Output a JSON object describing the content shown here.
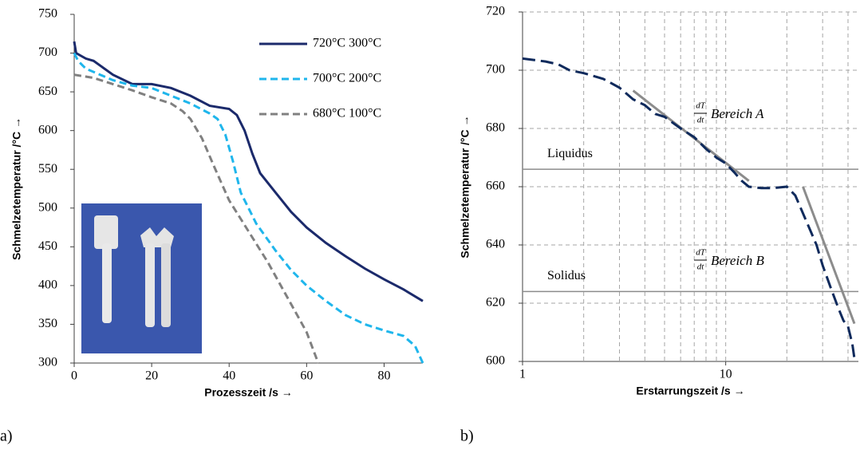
{
  "chart_data": [
    {
      "type": "line",
      "panel_label": "a)",
      "xlabel": "Prozesszeit /s →",
      "ylabel": "Schmelzetemperatur /°C →",
      "xlim": [
        0,
        90
      ],
      "xticks": [
        0,
        20,
        40,
        60,
        80
      ],
      "ylim": [
        300,
        750
      ],
      "yticks": [
        300,
        350,
        400,
        450,
        500,
        550,
        600,
        650,
        700,
        750
      ],
      "legend": "upper right",
      "series": [
        {
          "name": "720°C 300°C",
          "color": "#1b2a6b",
          "dash": "solid",
          "x": [
            0,
            0.5,
            3,
            5,
            10,
            15,
            20,
            25,
            30,
            35,
            40,
            42,
            44,
            46,
            48,
            52,
            56,
            60,
            65,
            70,
            75,
            80,
            85,
            90
          ],
          "values": [
            715,
            700,
            693,
            690,
            672,
            660,
            660,
            655,
            645,
            632,
            628,
            620,
            600,
            570,
            545,
            520,
            495,
            475,
            455,
            438,
            422,
            408,
            395,
            380
          ]
        },
        {
          "name": "700°C 200°C",
          "color": "#1fb6ec",
          "dash": "dashed",
          "x": [
            0,
            1,
            3,
            10,
            15,
            20,
            25,
            30,
            35,
            37,
            39,
            41,
            43,
            47,
            52,
            56,
            60,
            65,
            70,
            75,
            80,
            85,
            88,
            90
          ],
          "values": [
            700,
            690,
            680,
            665,
            658,
            655,
            645,
            635,
            622,
            615,
            595,
            560,
            520,
            480,
            445,
            420,
            400,
            380,
            362,
            350,
            342,
            335,
            322,
            300
          ]
        },
        {
          "name": "680°C 100°C",
          "color": "#808080",
          "dash": "dashed",
          "x": [
            0,
            5,
            10,
            15,
            20,
            25,
            28,
            30,
            33,
            36,
            40,
            45,
            50,
            55,
            60,
            63
          ],
          "values": [
            672,
            668,
            660,
            652,
            643,
            635,
            625,
            615,
            590,
            555,
            510,
            470,
            430,
            385,
            340,
            300
          ]
        }
      ]
    },
    {
      "type": "line",
      "panel_label": "b)",
      "xlabel": "Erstarrungszeit /s →",
      "ylabel": "Schmelzetemperatur /°C →",
      "xlog": true,
      "xlim": [
        1,
        45
      ],
      "xticks": [
        1,
        10
      ],
      "xgrid_minor": [
        2,
        3,
        4,
        5,
        6,
        7,
        8,
        9,
        20,
        30,
        40
      ],
      "ylim": [
        600,
        720
      ],
      "yticks": [
        600,
        620,
        640,
        660,
        680,
        700,
        720
      ],
      "grid": true,
      "color": "#0f2a5c",
      "dash": "longdash",
      "x": [
        1,
        1.3,
        1.5,
        1.7,
        2,
        2.5,
        3,
        3.5,
        4,
        4.5,
        5,
        6,
        7,
        8,
        9,
        10,
        11,
        12,
        13,
        15,
        17,
        20,
        22,
        25,
        28,
        30,
        33,
        36,
        38,
        40,
        42,
        43
      ],
      "values": [
        704,
        703,
        702,
        700,
        699,
        697,
        694,
        690,
        688,
        685,
        684,
        680,
        677,
        673,
        670,
        668,
        665,
        662,
        660,
        659.5,
        659.5,
        660,
        657,
        648,
        640,
        633,
        625,
        618,
        614,
        612,
        606,
        601
      ],
      "tangents": [
        {
          "x": [
            3.5,
            13
          ],
          "values": [
            693,
            662
          ]
        },
        {
          "x": [
            24,
            43
          ],
          "values": [
            660,
            613
          ]
        }
      ],
      "hlines": [
        {
          "label": "Liquidus",
          "value": 666
        },
        {
          "label": "Solidus",
          "value": 624
        }
      ],
      "annotations": [
        {
          "numerator": "dT",
          "denominator": "dt",
          "text": "Bereich A"
        },
        {
          "numerator": "dT",
          "denominator": "dt",
          "text": "Bereich B"
        }
      ]
    }
  ]
}
